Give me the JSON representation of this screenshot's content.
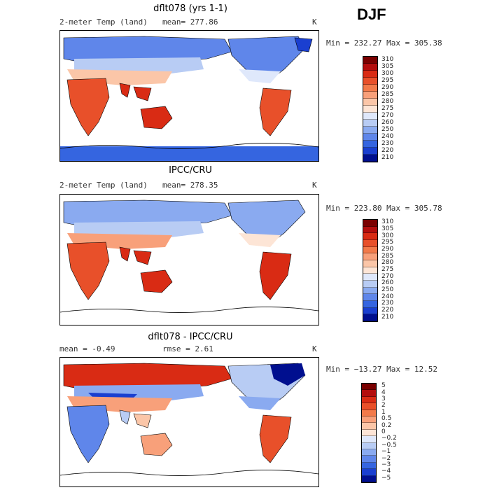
{
  "season": "DJF",
  "panels": [
    {
      "title": "dflt078 (yrs 1-1)",
      "left_label": "2-meter Temp (land)",
      "mean_text": "mean= 277.86",
      "unit": "K",
      "minmax": "Min = 232.27 Max = 305.38"
    },
    {
      "title": "IPCC/CRU",
      "left_label": "2-meter Temp (land)",
      "mean_text": "mean= 278.35",
      "unit": "K",
      "minmax": "Min = 223.80 Max = 305.78"
    },
    {
      "title": "dflt078 - IPCC/CRU",
      "left_label": "mean =   -0.49",
      "mean_text": "rmse =    2.61",
      "unit": "K",
      "minmax": "Min = −13.27 Max =   12.52"
    }
  ],
  "chart_data": [
    {
      "type": "heatmap",
      "title": "dflt078 (yrs 1-1)",
      "variable": "2-meter Temp (land)",
      "units": "K",
      "mean": 277.86,
      "min": 232.27,
      "max": 305.38,
      "colorbar": {
        "levels": [
          "310",
          "305",
          "300",
          "295",
          "290",
          "285",
          "280",
          "275",
          "270",
          "260",
          "250",
          "240",
          "230",
          "220",
          "210"
        ],
        "colors": [
          "#7a0000",
          "#b30d0d",
          "#d92b14",
          "#e8502a",
          "#f27a4a",
          "#f8a07a",
          "#fbc6a8",
          "#fde5d6",
          "#dfe8fb",
          "#b8ccf4",
          "#8aaaf0",
          "#5f86ea",
          "#3565e0",
          "#1a3fd0",
          "#000f8f"
        ]
      }
    },
    {
      "type": "heatmap",
      "title": "IPCC/CRU",
      "variable": "2-meter Temp (land)",
      "units": "K",
      "mean": 278.35,
      "min": 223.8,
      "max": 305.78,
      "colorbar": {
        "levels": [
          "310",
          "305",
          "300",
          "295",
          "290",
          "285",
          "280",
          "275",
          "270",
          "260",
          "250",
          "240",
          "230",
          "220",
          "210"
        ],
        "colors": [
          "#7a0000",
          "#b30d0d",
          "#d92b14",
          "#e8502a",
          "#f27a4a",
          "#f8a07a",
          "#fbc6a8",
          "#fde5d6",
          "#dfe8fb",
          "#b8ccf4",
          "#8aaaf0",
          "#5f86ea",
          "#3565e0",
          "#1a3fd0",
          "#000f8f"
        ]
      }
    },
    {
      "type": "heatmap",
      "title": "dflt078 - IPCC/CRU",
      "units": "K",
      "mean": -0.49,
      "rmse": 2.61,
      "min": -13.27,
      "max": 12.52,
      "colorbar": {
        "levels": [
          "5",
          "4",
          "3",
          "2",
          "1",
          "0.5",
          "0.2",
          "0",
          "−0.2",
          "−0.5",
          "−1",
          "−2",
          "−3",
          "−4",
          "−5"
        ],
        "colors": [
          "#7a0000",
          "#b30d0d",
          "#d92b14",
          "#e8502a",
          "#f27a4a",
          "#f8a07a",
          "#fbc6a8",
          "#fde5d6",
          "#dfe8fb",
          "#b8ccf4",
          "#8aaaf0",
          "#5f86ea",
          "#3565e0",
          "#1a3fd0",
          "#000f8f"
        ]
      }
    }
  ]
}
